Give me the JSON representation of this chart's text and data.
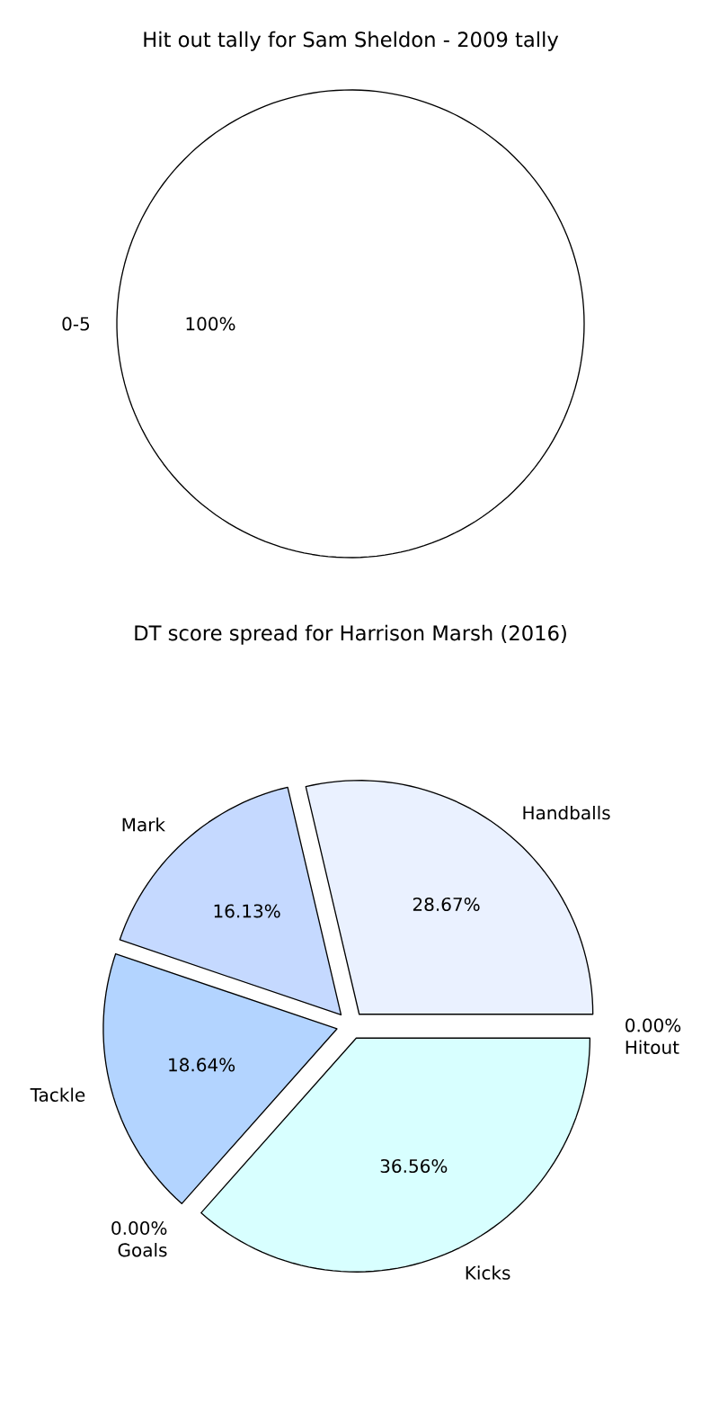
{
  "chart_data": [
    {
      "type": "pie",
      "title": "Hit out tally for Sam Sheldon - 2009 tally",
      "categories": [
        "0-5"
      ],
      "values": [
        100
      ],
      "value_labels": [
        "100%"
      ],
      "colors": [
        "#ffffff"
      ]
    },
    {
      "type": "pie",
      "title": "DT score spread for Harrison Marsh (2016)",
      "categories": [
        "Handballs",
        "Mark",
        "Tackle",
        "Goals",
        "Kicks",
        "Hitout"
      ],
      "values": [
        28.67,
        16.13,
        18.64,
        0,
        36.56,
        0
      ],
      "value_labels": [
        "28.67%",
        "16.13%",
        "18.64%",
        "0.00%",
        "36.56%",
        "0.00%"
      ],
      "colors": [
        "#eaf1ff",
        "#c5d9ff",
        "#b3d4ff",
        "#a6cbff",
        "#d8ffff",
        "#cfe8ff"
      ]
    }
  ]
}
